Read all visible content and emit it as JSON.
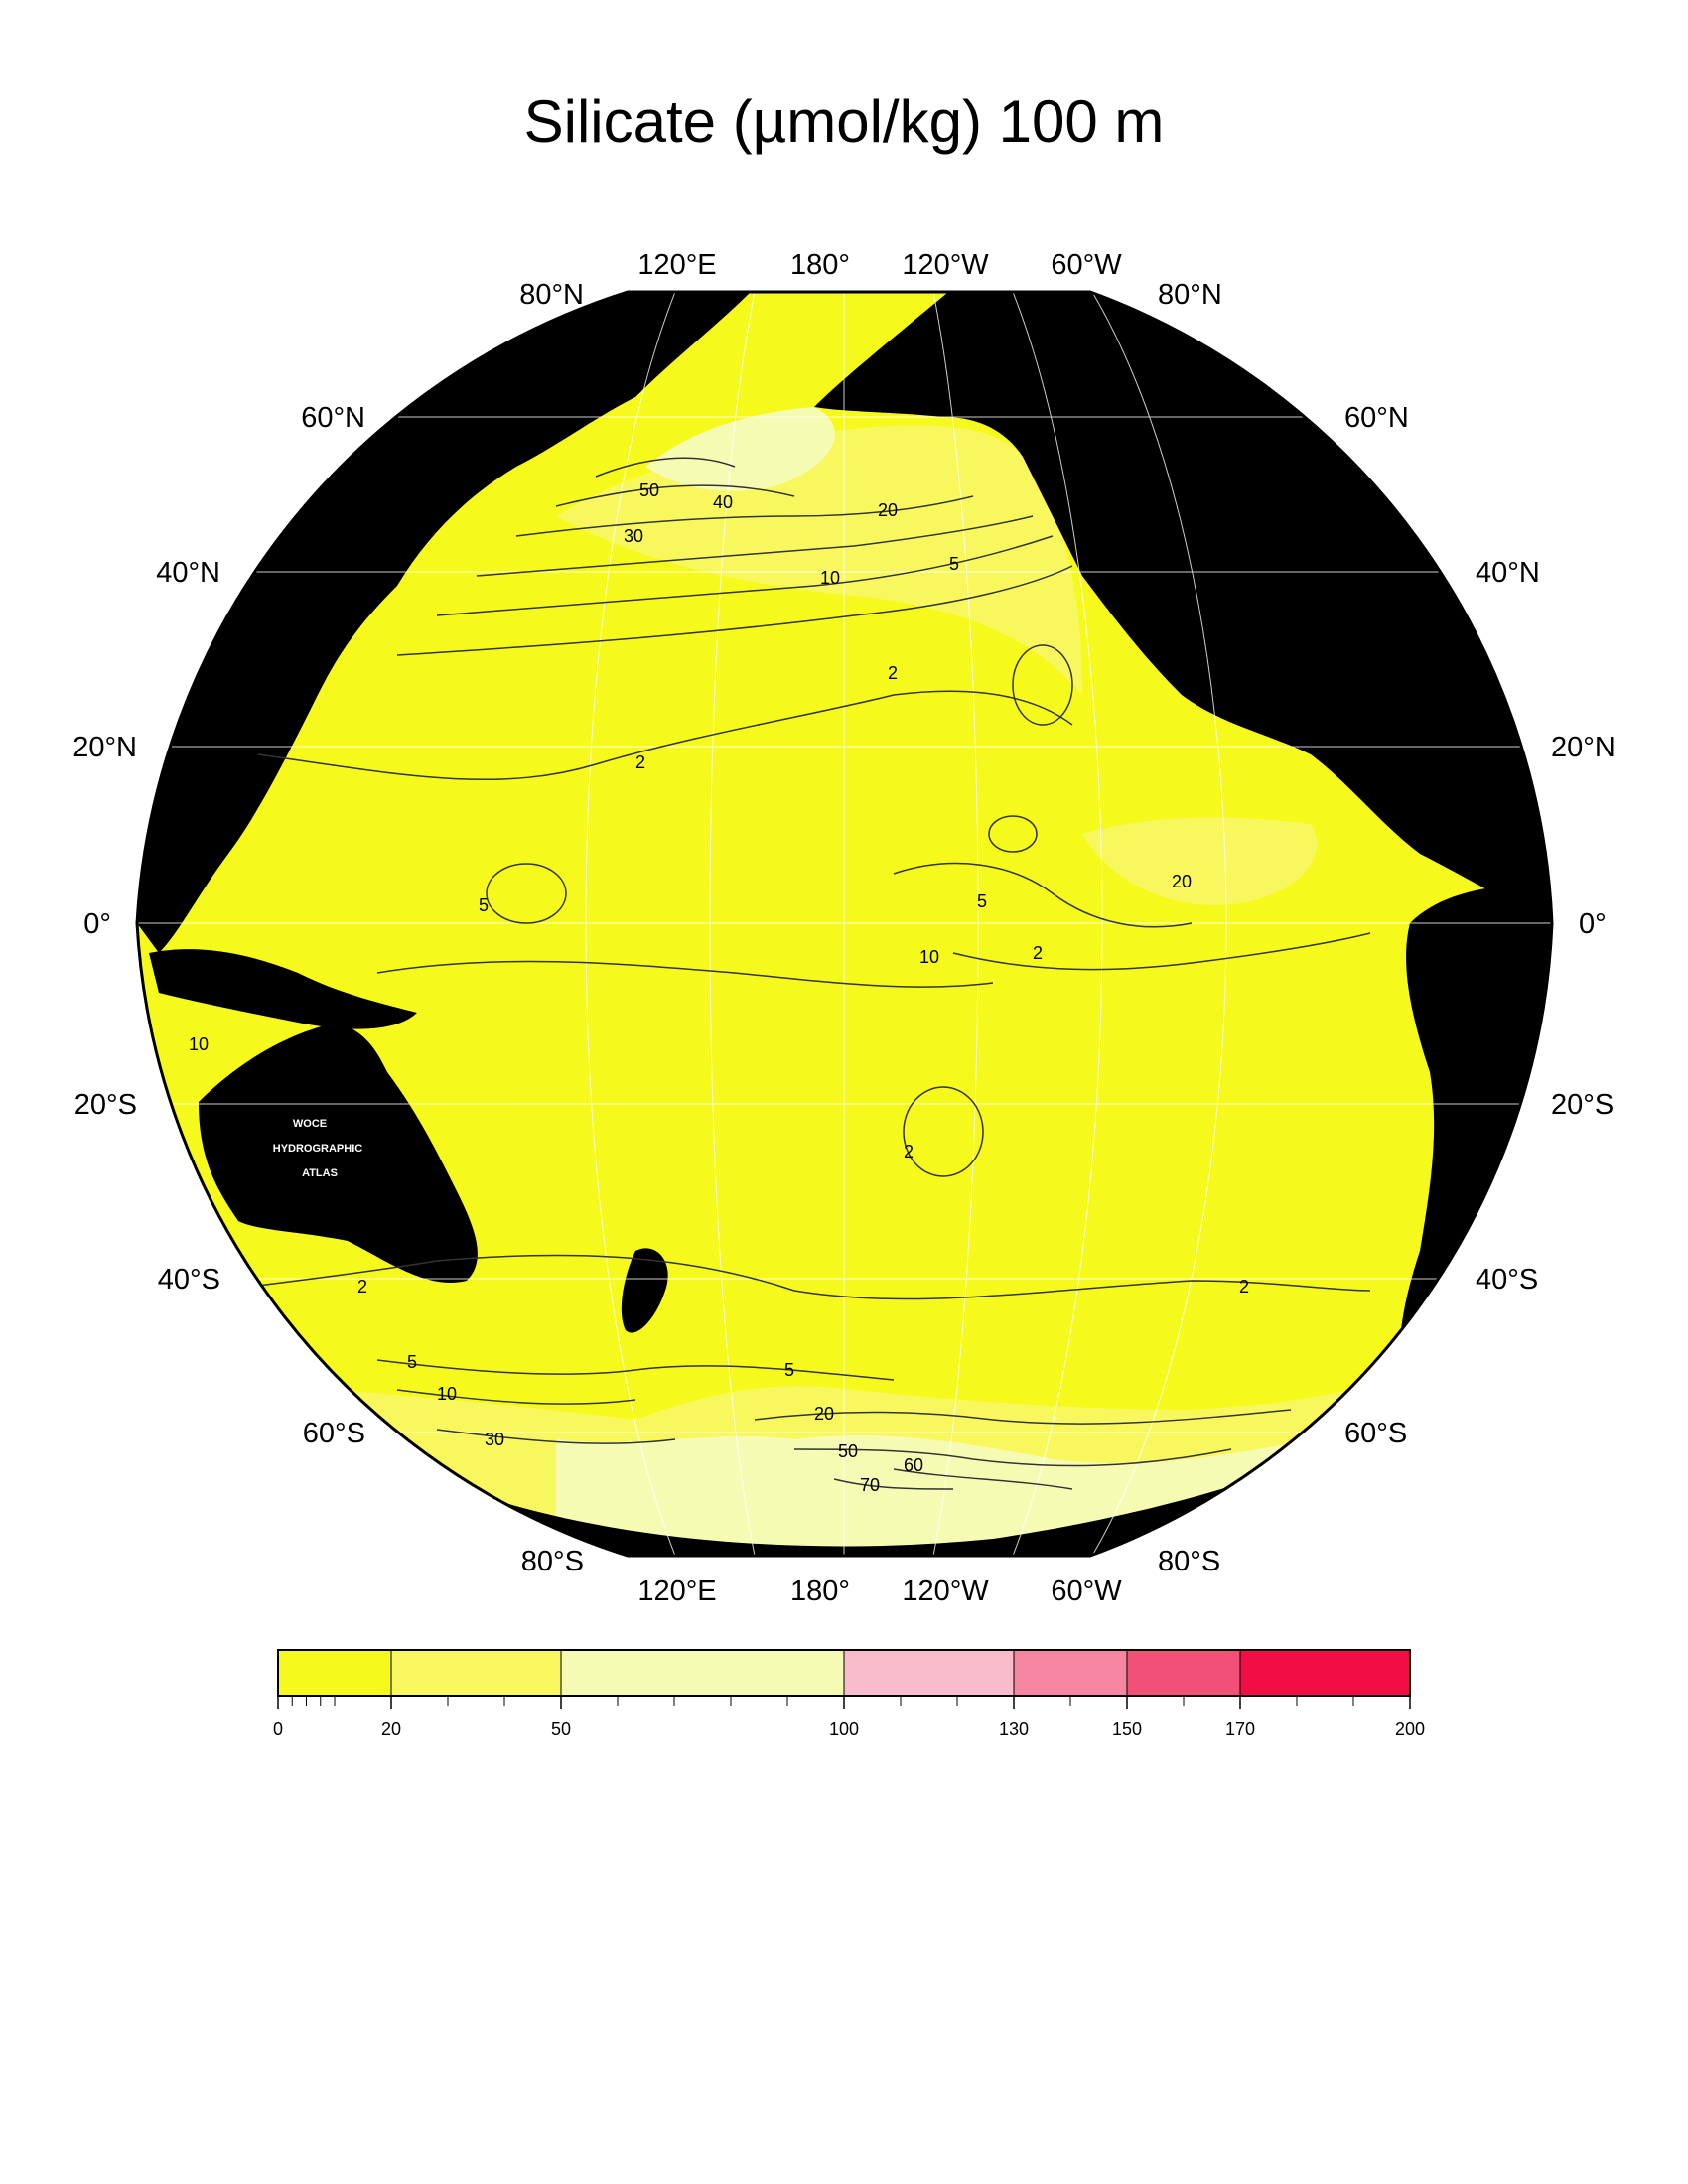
{
  "title": "Silicate (µmol/kg) 100 m",
  "projection": "orthographic, Pacific-centered",
  "colors": {
    "land": "#000000",
    "shelf_no_data": "#c8c8c8",
    "band_0_20": "#f6f91c",
    "band_20_50": "#f8f85e",
    "band_50_100": "#f6fbb4",
    "band_100_130": "#f9bccd",
    "band_130_150": "#f585a1",
    "band_150_170": "#f35078",
    "band_170_200": "#f20d45",
    "graticule": "#ffffff",
    "contour": "#333333"
  },
  "latitude_labels_left": [
    "80°N",
    "60°N",
    "40°N",
    "20°N",
    "0°",
    "20°S",
    "40°S",
    "60°S",
    "80°S"
  ],
  "latitude_labels_right": [
    "80°N",
    "60°N",
    "40°N",
    "20°N",
    "0°",
    "20°S",
    "40°S",
    "60°S",
    "80°S"
  ],
  "longitude_labels_top": [
    "120°E",
    "180°",
    "120°W",
    "60°W"
  ],
  "longitude_labels_bottom": [
    "120°E",
    "180°",
    "120°W",
    "60°W"
  ],
  "contour_labels": [
    "50",
    "40",
    "30",
    "20",
    "5",
    "10",
    "2",
    "2",
    "5",
    "20",
    "5",
    "2",
    "10",
    "10",
    "2",
    "2",
    "2",
    "5",
    "10",
    "30",
    "5",
    "20",
    "50",
    "60",
    "70"
  ],
  "stamp": [
    "WOCE",
    "HYDROGRAPHIC",
    "ATLAS"
  ],
  "colorbar": {
    "ticks": [
      "0",
      "20",
      "50",
      "100",
      "130",
      "150",
      "170",
      "200"
    ],
    "bands": [
      {
        "from": 0,
        "to": 20,
        "color": "#f6f91c"
      },
      {
        "from": 20,
        "to": 50,
        "color": "#f8f85e"
      },
      {
        "from": 50,
        "to": 100,
        "color": "#f6fbb4"
      },
      {
        "from": 100,
        "to": 130,
        "color": "#f9bccd"
      },
      {
        "from": 130,
        "to": 150,
        "color": "#f585a1"
      },
      {
        "from": 150,
        "to": 170,
        "color": "#f35078"
      },
      {
        "from": 170,
        "to": 200,
        "color": "#f20d45"
      }
    ]
  }
}
